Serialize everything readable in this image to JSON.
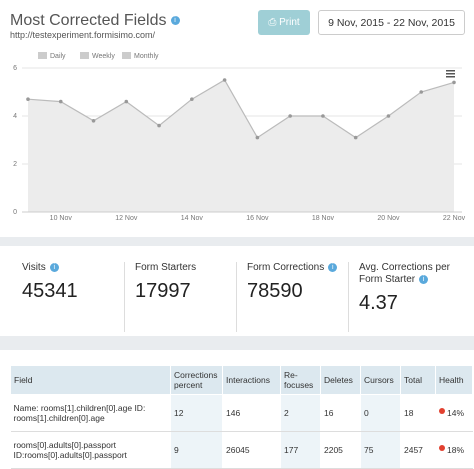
{
  "header": {
    "title": "Most Corrected Fields",
    "url": "http://testexperiment.formisimo.com/",
    "print": "Print",
    "date_range": "9 Nov, 2015 - 22 Nov, 2015"
  },
  "chart_data": {
    "type": "area",
    "range_options": [
      "Daily",
      "Weekly",
      "Monthly"
    ],
    "categories": [
      null,
      "10 Nov",
      null,
      "12 Nov",
      null,
      "14 Nov",
      null,
      "16 Nov",
      null,
      "18 Nov",
      null,
      "20 Nov",
      null,
      "22 Nov"
    ],
    "values": [
      4.7,
      4.6,
      3.8,
      4.6,
      3.6,
      4.7,
      5.5,
      3.1,
      4.0,
      4.0,
      3.1,
      4.0,
      5.0,
      5.4
    ],
    "color": "#bbbbbb",
    "fill": "#ececec",
    "ylim": [
      0,
      6
    ],
    "yticks": [
      0,
      2,
      4,
      6
    ],
    "grid": true
  },
  "stats": [
    {
      "label": "Visits",
      "value": 45341,
      "info": true
    },
    {
      "label": "Form Starters",
      "value": 17997,
      "info": false
    },
    {
      "label": "Form Corrections",
      "value": 78590,
      "info": true
    },
    {
      "label": "Avg. Corrections per Form Starter",
      "value": 4.37,
      "info": true
    }
  ],
  "table": {
    "columns": [
      "Field",
      "Corrections percent",
      "Interactions",
      "Re-focuses",
      "Deletes",
      "Cursors",
      "Total",
      "Health"
    ],
    "rows": [
      [
        "Name: rooms[1].children[0].age ID: rooms[1].children[0].age",
        12,
        146,
        2,
        16,
        0,
        18,
        "14%"
      ],
      [
        "rooms[0].adults[0].passport ID:rooms[0].adults[0].passport",
        9,
        26045,
        177,
        2205,
        75,
        2457,
        "18%"
      ]
    ]
  }
}
